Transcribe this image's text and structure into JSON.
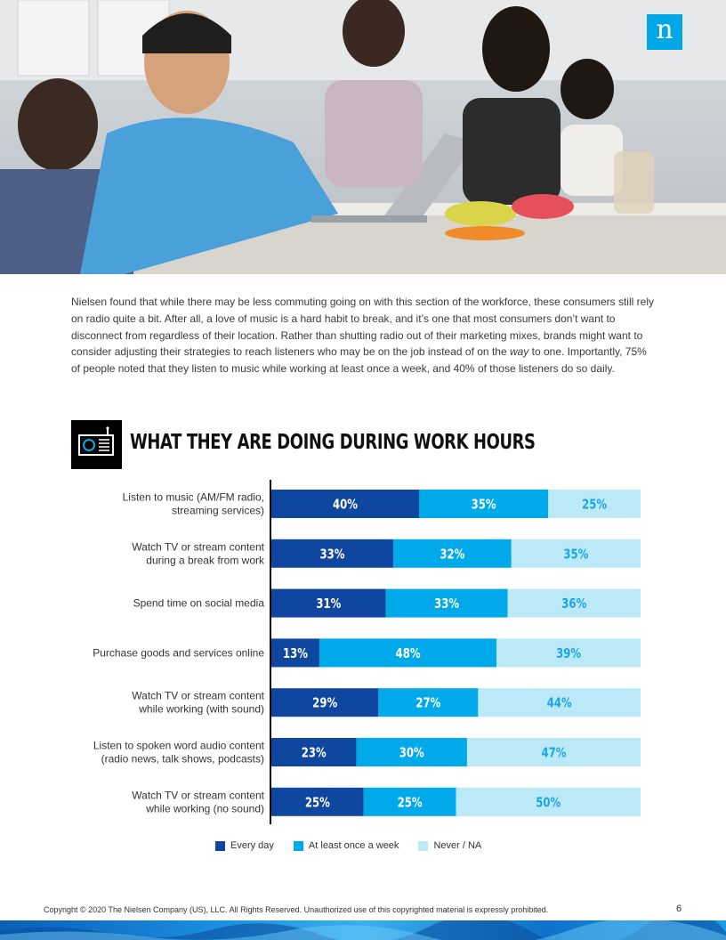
{
  "logo": {
    "letter": "n"
  },
  "intro": {
    "part1": "Nielsen found that while there may be less commuting going on with this section of the workforce, these consumers still rely on radio quite a bit. After all, a love of music is a hard habit to break, and it’s one that most consumers don’t want to disconnect from regardless of their location. Rather than shutting radio out of their marketing mixes, brands might want to consider adjusting their strategies to reach listeners who may be on the job instead of on the ",
    "emphasis": "way",
    "part2": " to one. Importantly, 75% of people noted that they listen to music while working at least once a week, and 40% of those listeners do so daily."
  },
  "section": {
    "title": "WHAT THEY ARE DOING DURING WORK HOURS",
    "icon": "radio-icon"
  },
  "chart_data": {
    "type": "bar",
    "orientation": "horizontal",
    "stacked": true,
    "categories": [
      [
        "Listen to music (AM/FM radio,",
        "streaming services)"
      ],
      [
        "Watch TV or stream content",
        "during a break from work"
      ],
      [
        "Spend time on social media"
      ],
      [
        "Purchase goods and services online"
      ],
      [
        "Watch TV or stream content",
        "while working (with sound)"
      ],
      [
        "Listen to spoken word audio content",
        "(radio news, talk shows, podcasts)"
      ],
      [
        "Watch TV or stream content",
        "while working (no sound)"
      ]
    ],
    "series": [
      {
        "name": "Every day",
        "color": "#0f47a0",
        "label_color": "#ffffff",
        "values": [
          40,
          33,
          31,
          13,
          29,
          23,
          25
        ]
      },
      {
        "name": "At least once a week",
        "color": "#00a9ea",
        "label_color": "#ffffff",
        "values": [
          35,
          32,
          33,
          48,
          27,
          30,
          25
        ]
      },
      {
        "name": "Never / NA",
        "color": "#bce9f8",
        "label_color": "#19a6e6",
        "values": [
          25,
          35,
          36,
          39,
          44,
          47,
          50
        ]
      }
    ],
    "value_suffix": "%",
    "xlim": [
      0,
      100
    ],
    "grid": false,
    "legend_position": "bottom"
  },
  "footer": {
    "copyright": "Copyright © 2020 The Nielsen Company (US), LLC. All Rights Reserved. Unauthorized use of this copyrighted material is expressly prohibited.",
    "page_number": "6"
  }
}
